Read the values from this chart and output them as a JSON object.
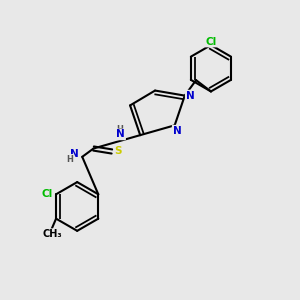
{
  "background_color": "#e8e8e8",
  "bond_color": "#000000",
  "atom_colors": {
    "N": "#0000cc",
    "S": "#cccc00",
    "Cl": "#00bb00",
    "H": "#555555",
    "C": "#000000"
  },
  "figsize": [
    3.0,
    3.0
  ],
  "dpi": 100
}
